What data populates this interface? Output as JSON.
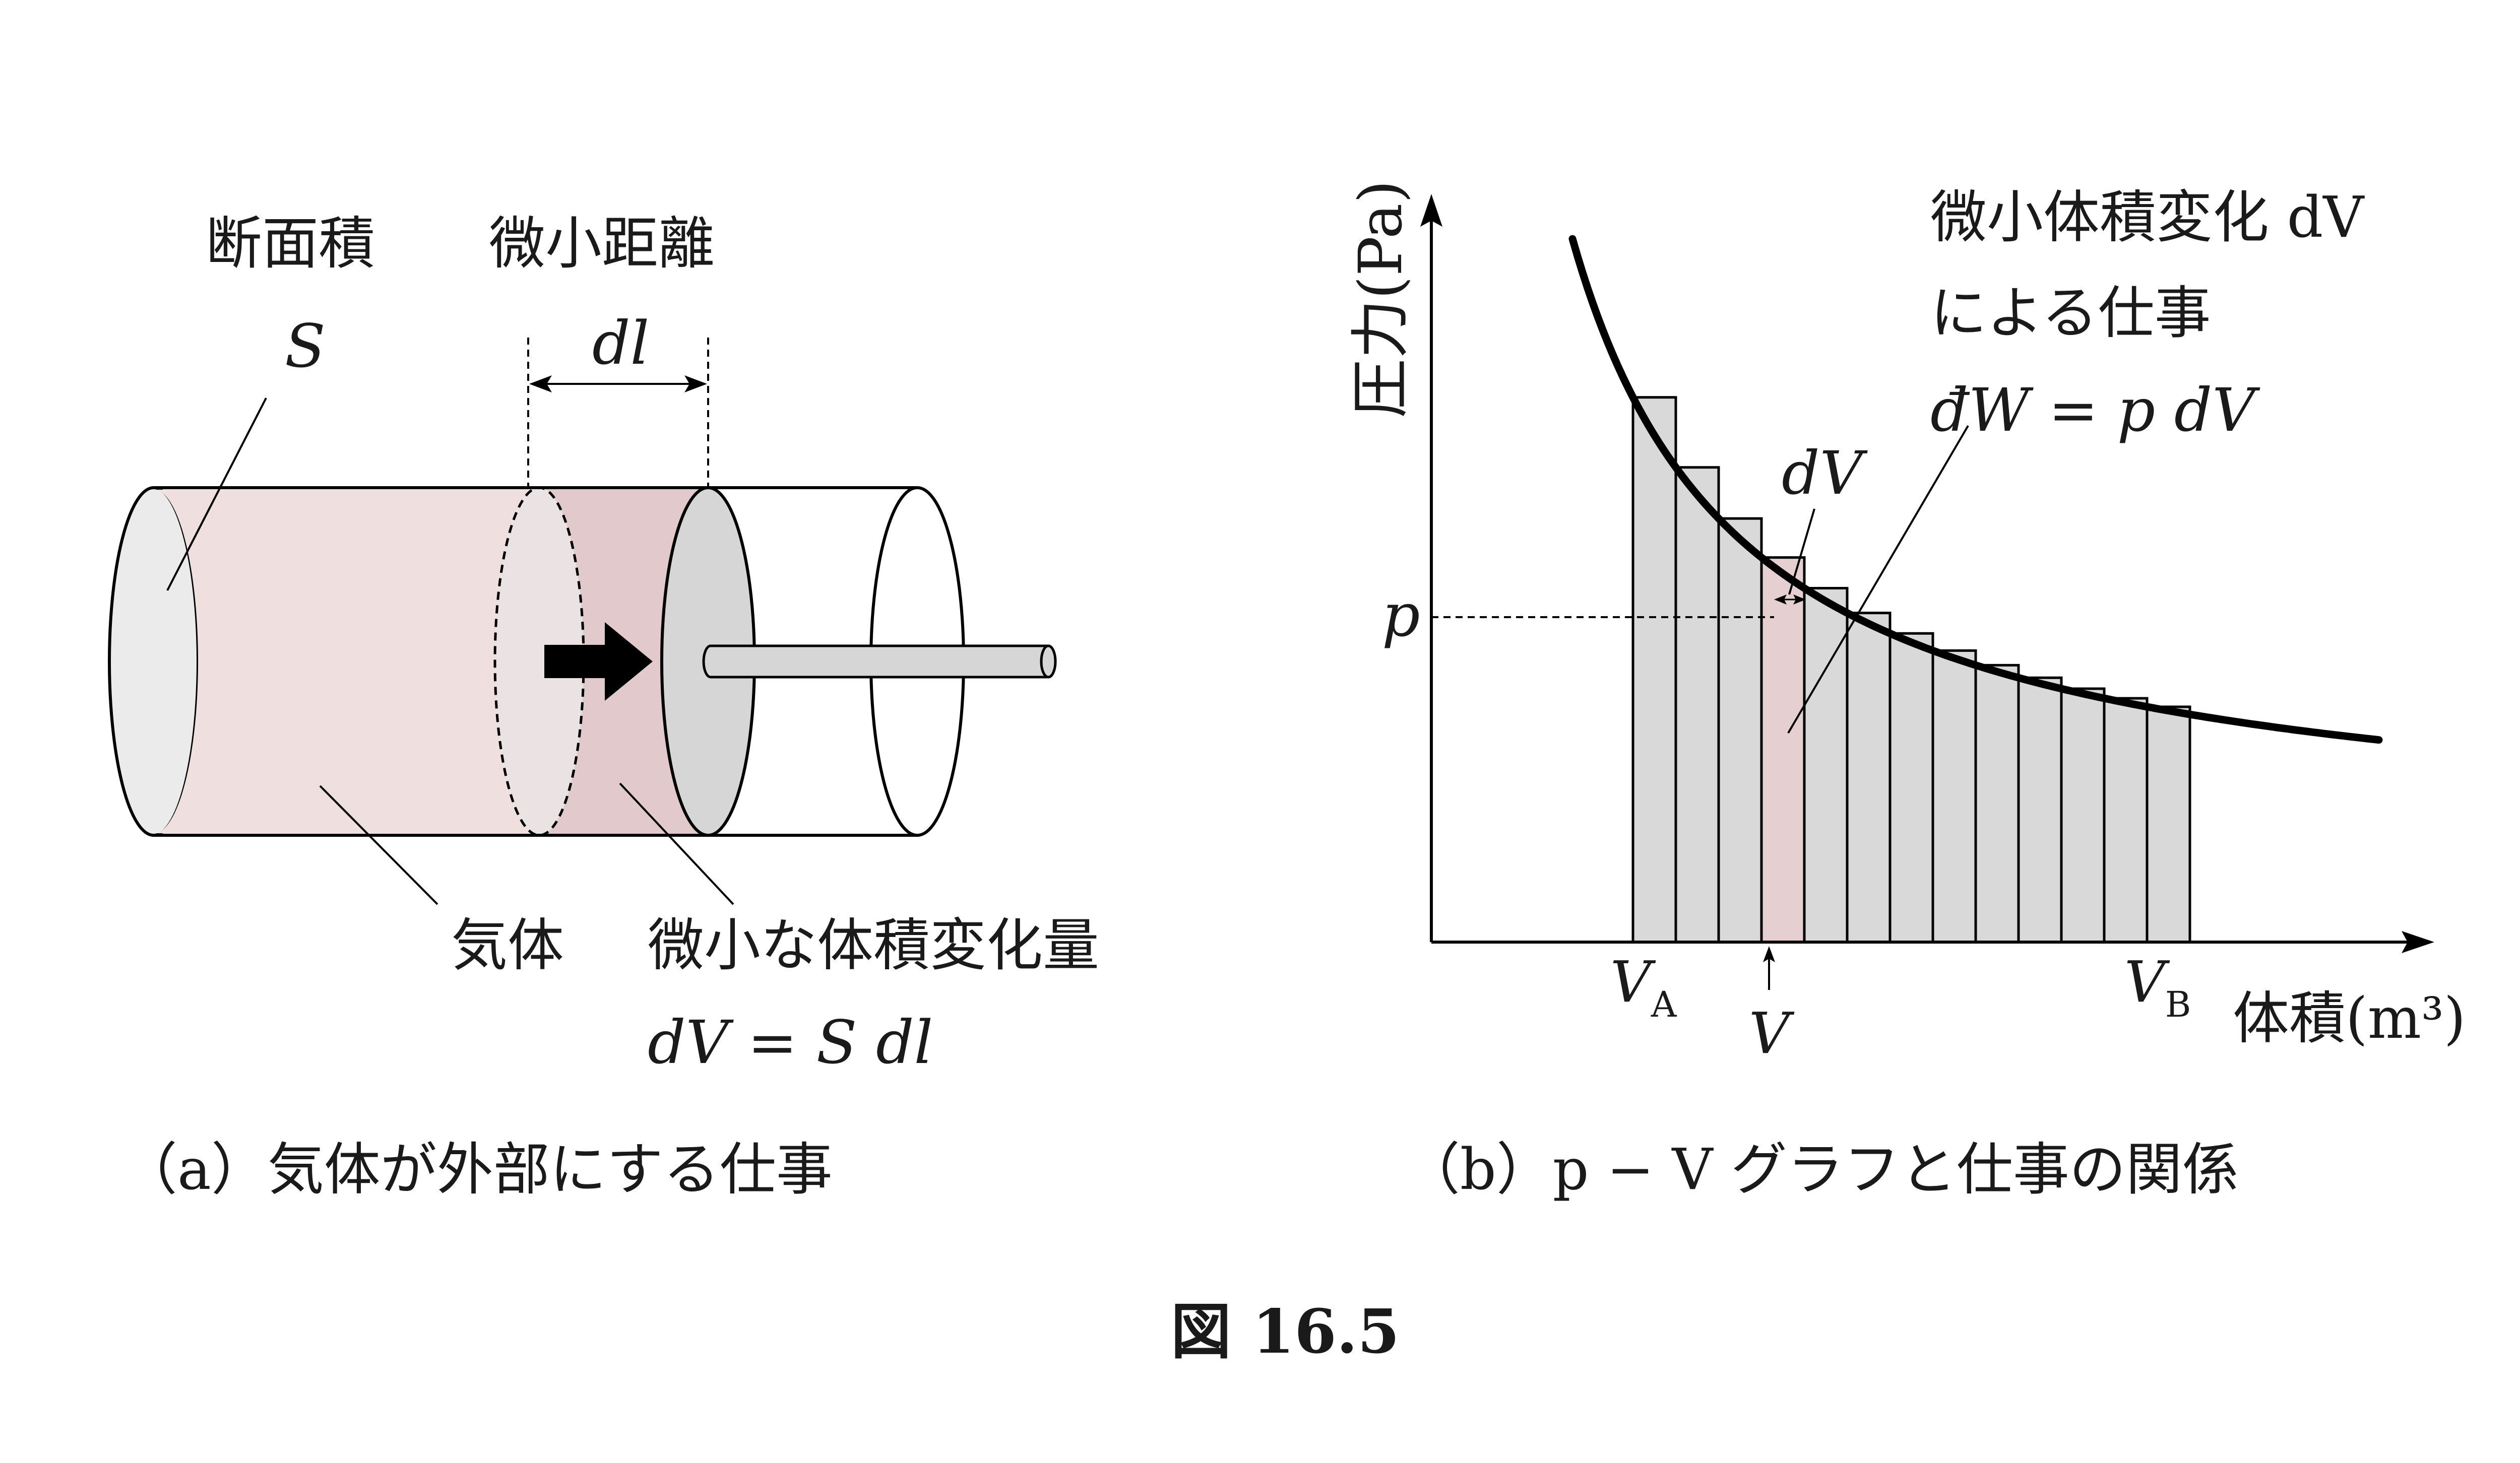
{
  "figure_number": "図 16.5",
  "panel_a": {
    "caption": "（a）気体が外部にする仕事",
    "label_area": "断面積",
    "label_area_symbol": "S",
    "label_distance": "微小距離",
    "label_distance_symbol": "dl",
    "label_gas": "気体",
    "label_volume_change": "微小な体積変化量",
    "label_equation": "dV = S dl",
    "colors": {
      "gas": "#efdfdf",
      "moving": "#e2c9cb",
      "piston": "#d6d6d6",
      "end_cap": "#ebebeb"
    }
  },
  "panel_b": {
    "caption": "（b）p − V グラフと仕事の関係",
    "y_axis_label": "圧力(Pa)",
    "x_axis_label": "体積(m³)",
    "label_p": "p",
    "label_VA": "V",
    "label_VA_sub": "A",
    "label_V": "V",
    "label_VB": "V",
    "label_VB_sub": "B",
    "label_dV": "dV",
    "annotation_line1": "微小体積変化 dV",
    "annotation_line2": "による仕事",
    "annotation_line3": "đW = p dV",
    "colors": {
      "bars": "#d9d9d9",
      "highlight_bar": "#e6cfd0",
      "curve": "#000000"
    }
  }
}
